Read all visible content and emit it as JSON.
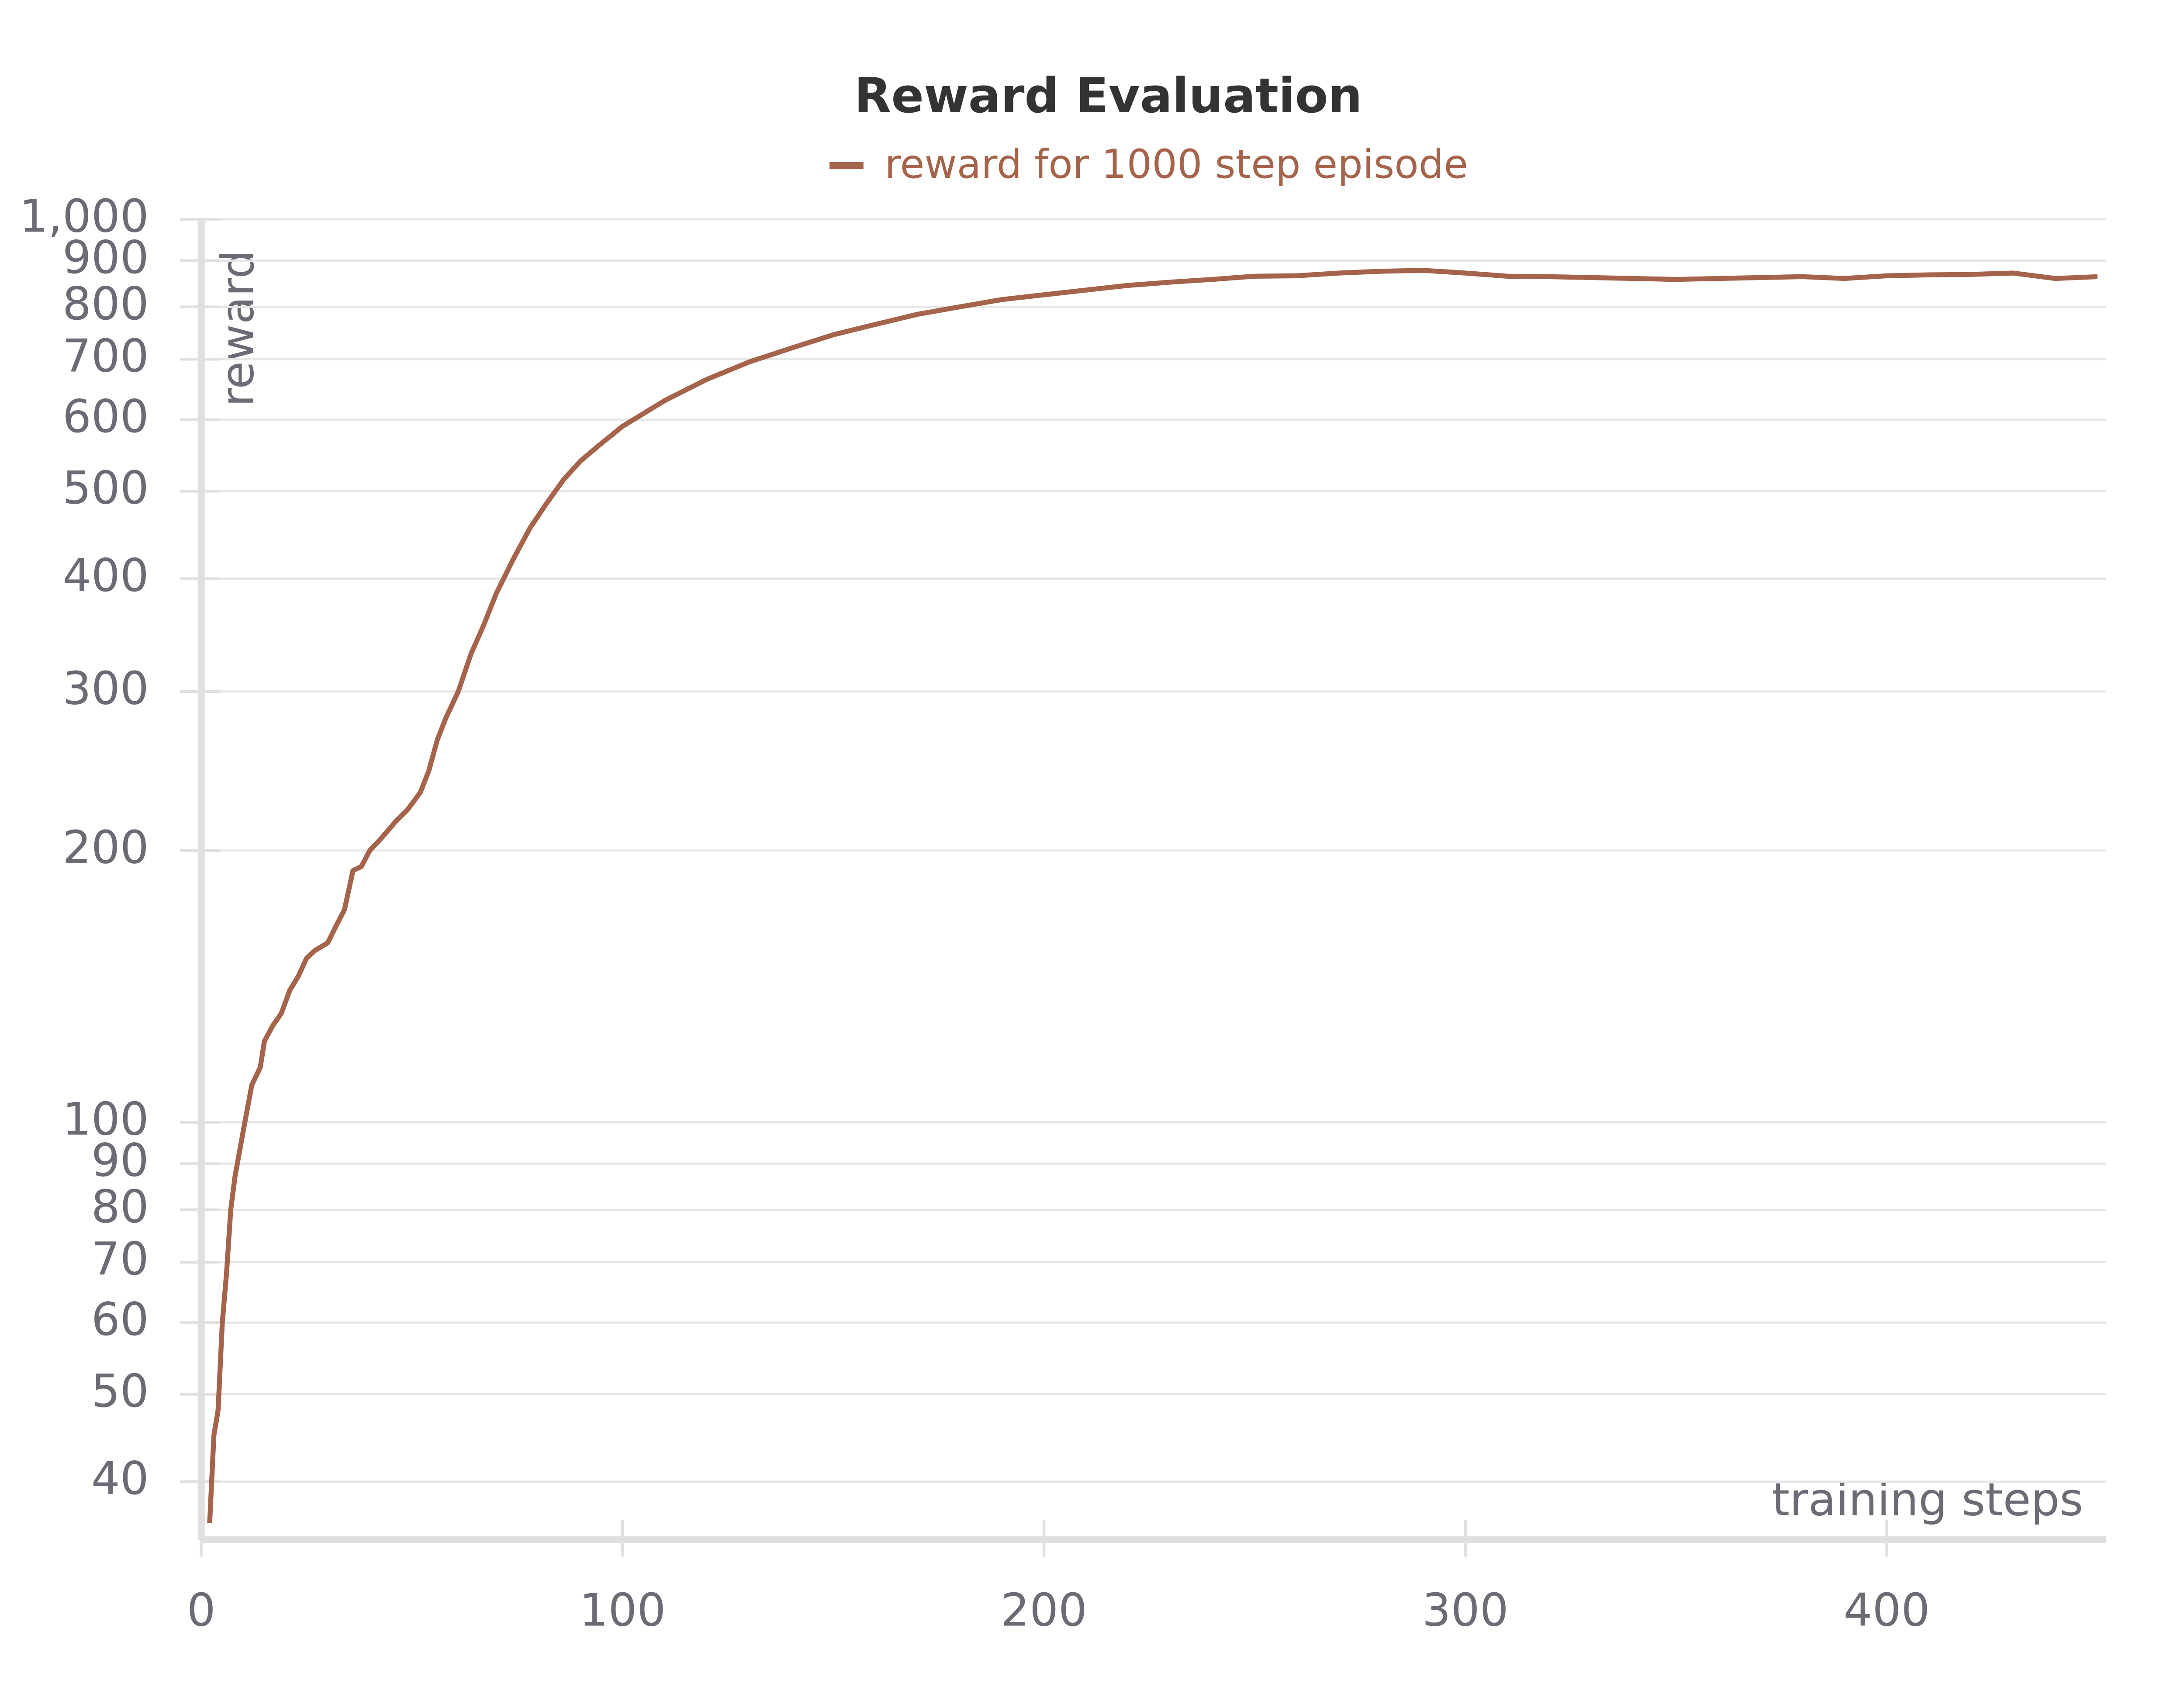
{
  "chart_data": {
    "type": "line",
    "title": "Reward Evaluation",
    "x_label": "training steps",
    "y_label": "reward",
    "log_y": true,
    "grid": true,
    "legend": "top",
    "xlim": [
      0,
      452
    ],
    "ylim": [
      34.5,
      1000
    ],
    "xticks": [
      0,
      100,
      200,
      300,
      400
    ],
    "yticks": [
      40,
      50,
      60,
      70,
      80,
      90,
      100,
      200,
      300,
      400,
      500,
      600,
      700,
      800,
      900,
      {
        "value": 1000,
        "label": "1,000"
      }
    ],
    "x": [
      2,
      3,
      4,
      5,
      6,
      7,
      8,
      10,
      12,
      14,
      15,
      17,
      19,
      21,
      23,
      25,
      27,
      30,
      32,
      34,
      36,
      38,
      40,
      43,
      46,
      49,
      52,
      54,
      56,
      58,
      61,
      64,
      67,
      70,
      74,
      78,
      82,
      86,
      90,
      95,
      100,
      110,
      120,
      130,
      140,
      150,
      160,
      170,
      180,
      190,
      200,
      210,
      220,
      230,
      240,
      250,
      260,
      270,
      280,
      290,
      300,
      310,
      320,
      330,
      340,
      350,
      360,
      370,
      380,
      390,
      400,
      410,
      420,
      430,
      440,
      450
    ],
    "series": [
      {
        "name": "reward for 1000 step episode",
        "color": "#a4634a",
        "values": [
          36,
          45,
          48,
          60,
          68,
          80,
          87,
          98,
          110,
          115,
          123,
          128,
          132,
          140,
          145,
          152,
          155,
          158,
          165,
          172,
          190,
          192,
          200,
          207,
          215,
          222,
          232,
          245,
          265,
          280,
          300,
          330,
          355,
          385,
          420,
          455,
          485,
          515,
          540,
          565,
          590,
          630,
          665,
          695,
          720,
          745,
          765,
          785,
          800,
          815,
          825,
          835,
          845,
          852,
          858,
          865,
          866,
          872,
          876,
          878,
          872,
          865,
          864,
          862,
          860,
          858,
          860,
          862,
          864,
          860,
          866,
          868,
          869,
          872,
          860,
          864
        ]
      }
    ]
  }
}
